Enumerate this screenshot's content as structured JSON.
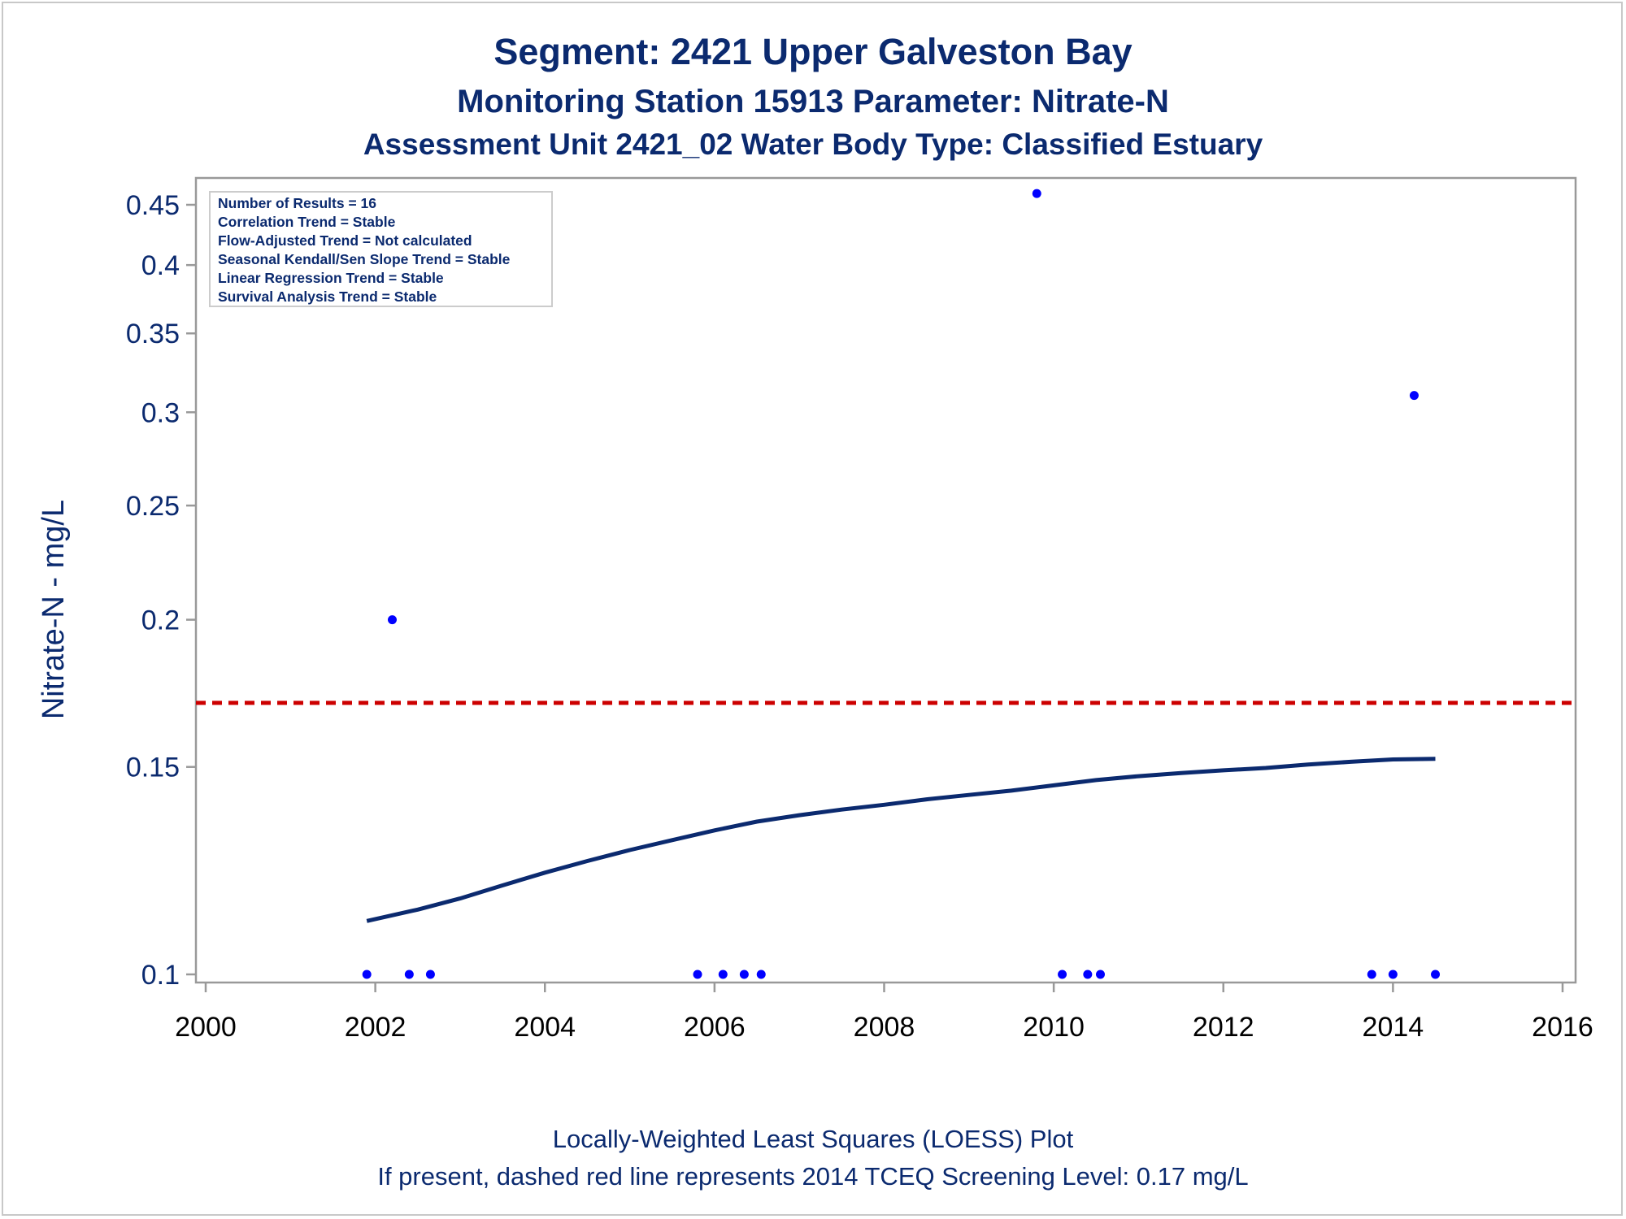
{
  "chart_data": {
    "type": "scatter",
    "title": "Segment: 2421  Upper Galveston Bay",
    "subtitle": "Monitoring Station 15913 Parameter: Nitrate-N",
    "subtitle2": "Assessment Unit 2421_02   Water Body Type: Classified Estuary",
    "xlabel": "",
    "ylabel": "Nitrate-N - mg/L",
    "xlim": [
      2000,
      2016
    ],
    "ylim": [
      0.1,
      0.45
    ],
    "y_scale": "log",
    "x_ticks": [
      "2000",
      "2002",
      "2004",
      "2006",
      "2008",
      "2010",
      "2012",
      "2014",
      "2016"
    ],
    "y_ticks": [
      "0.1",
      "0.15",
      "0.2",
      "0.25",
      "0.3",
      "0.35",
      "0.4",
      "0.45"
    ],
    "grid": false,
    "stats_box": [
      "Number of Results = 16",
      "Correlation Trend = Stable",
      "Flow-Adjusted Trend = Not calculated",
      "Seasonal Kendall/Sen Slope Trend = Stable",
      "Linear Regression Trend = Stable",
      "Survival Analysis Trend = Stable"
    ],
    "points": [
      {
        "x": 2001.9,
        "y": 0.1
      },
      {
        "x": 2002.2,
        "y": 0.2
      },
      {
        "x": 2002.4,
        "y": 0.1
      },
      {
        "x": 2002.65,
        "y": 0.1
      },
      {
        "x": 2005.8,
        "y": 0.1
      },
      {
        "x": 2006.1,
        "y": 0.1
      },
      {
        "x": 2006.35,
        "y": 0.1
      },
      {
        "x": 2006.55,
        "y": 0.1
      },
      {
        "x": 2009.8,
        "y": 0.46
      },
      {
        "x": 2010.1,
        "y": 0.1
      },
      {
        "x": 2010.4,
        "y": 0.1
      },
      {
        "x": 2010.55,
        "y": 0.1
      },
      {
        "x": 2013.75,
        "y": 0.1
      },
      {
        "x": 2014.0,
        "y": 0.1
      },
      {
        "x": 2014.25,
        "y": 0.31
      },
      {
        "x": 2014.5,
        "y": 0.1
      }
    ],
    "loess": [
      {
        "x": 2001.9,
        "y": 0.111
      },
      {
        "x": 2002.5,
        "y": 0.1135
      },
      {
        "x": 2003.0,
        "y": 0.116
      },
      {
        "x": 2003.5,
        "y": 0.119
      },
      {
        "x": 2004.0,
        "y": 0.122
      },
      {
        "x": 2004.5,
        "y": 0.1248
      },
      {
        "x": 2005.0,
        "y": 0.1275
      },
      {
        "x": 2005.5,
        "y": 0.13
      },
      {
        "x": 2006.0,
        "y": 0.1325
      },
      {
        "x": 2006.5,
        "y": 0.1348
      },
      {
        "x": 2007.0,
        "y": 0.1365
      },
      {
        "x": 2007.5,
        "y": 0.138
      },
      {
        "x": 2008.0,
        "y": 0.1393
      },
      {
        "x": 2008.5,
        "y": 0.1408
      },
      {
        "x": 2009.0,
        "y": 0.142
      },
      {
        "x": 2009.5,
        "y": 0.1432
      },
      {
        "x": 2010.0,
        "y": 0.1447
      },
      {
        "x": 2010.5,
        "y": 0.1462
      },
      {
        "x": 2011.0,
        "y": 0.1473
      },
      {
        "x": 2011.5,
        "y": 0.1482
      },
      {
        "x": 2012.0,
        "y": 0.149
      },
      {
        "x": 2012.5,
        "y": 0.1497
      },
      {
        "x": 2013.0,
        "y": 0.1507
      },
      {
        "x": 2013.5,
        "y": 0.1515
      },
      {
        "x": 2014.0,
        "y": 0.1522
      },
      {
        "x": 2014.5,
        "y": 0.1524
      }
    ],
    "screening_level": 0.17,
    "colors": {
      "points": "#0000ff",
      "loess": "#0b2a6f",
      "screening_line": "#cc0000",
      "text": "#0b2a6f",
      "axis": "#999999"
    },
    "footnote1": "Locally-Weighted Least Squares (LOESS) Plot",
    "footnote2": "If present, dashed red line represents 2014 TCEQ Screening Level: 0.17 mg/L"
  }
}
